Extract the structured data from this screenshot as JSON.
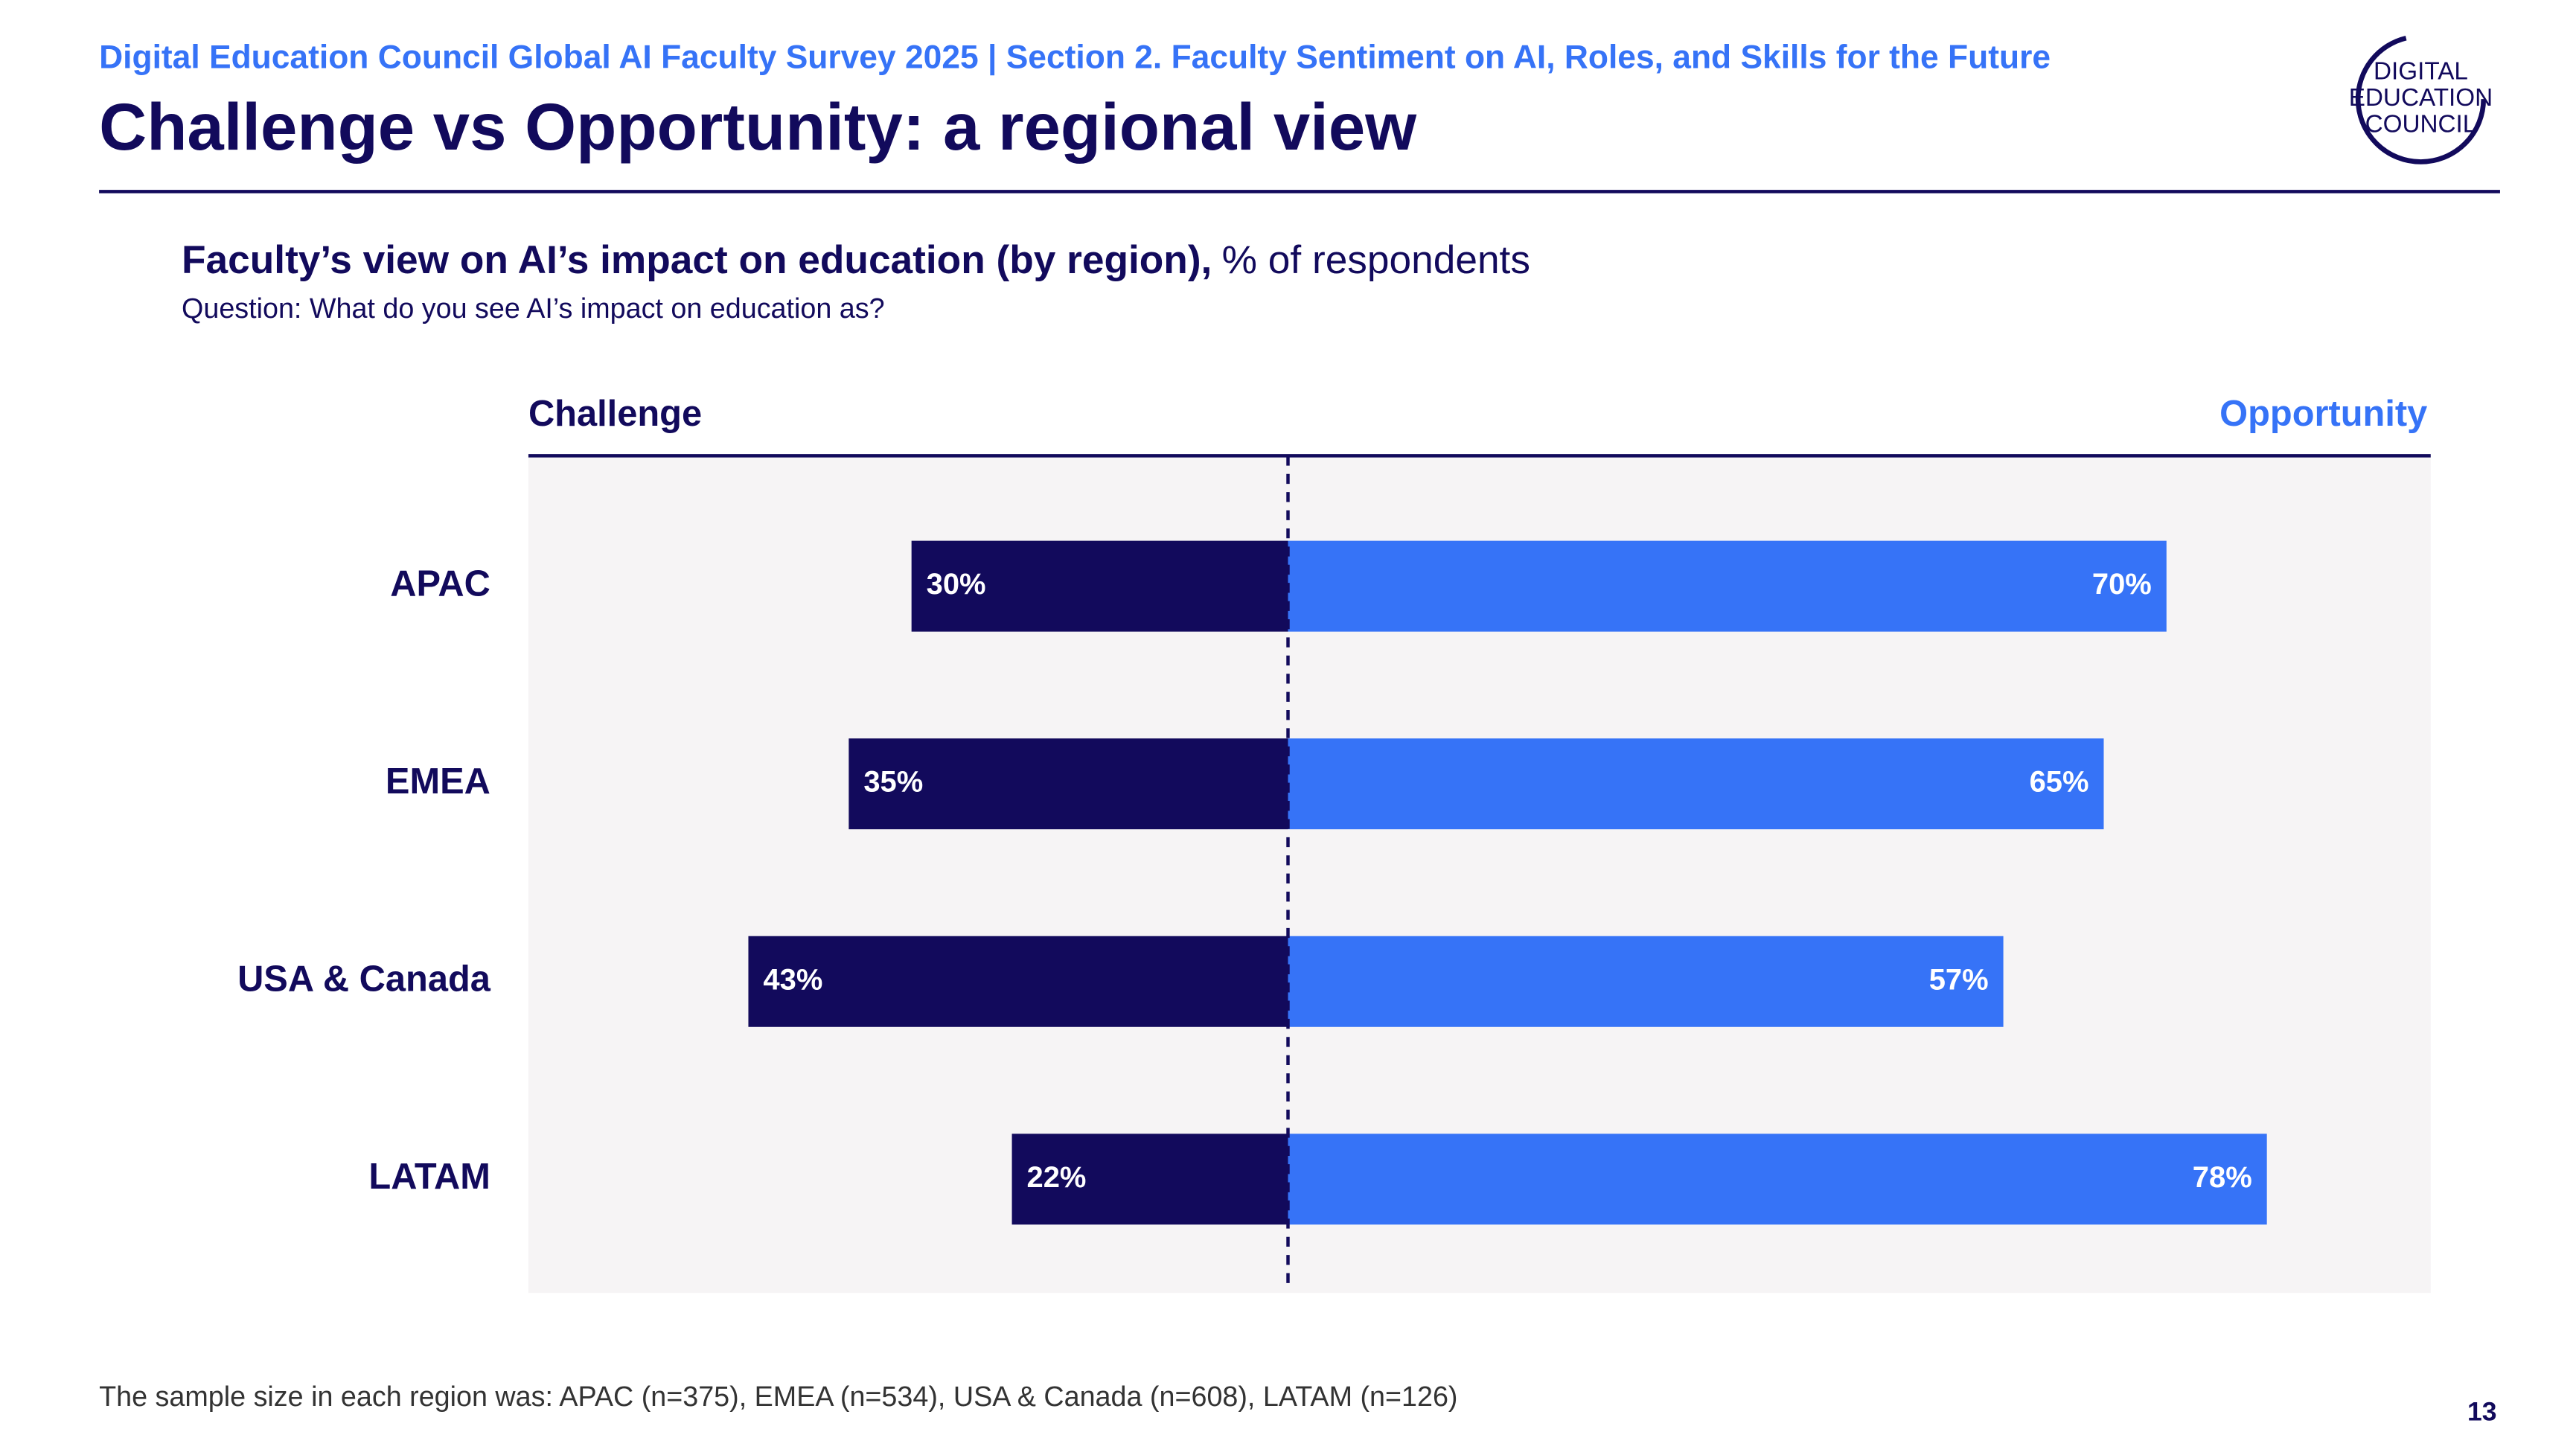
{
  "header": {
    "section": "Digital Education Council Global AI Faculty Survey 2025 | Section 2. Faculty Sentiment on AI, Roles, and Skills for the Future",
    "title": "Challenge vs Opportunity: a regional view",
    "logo": [
      "DIGITAL",
      "EDUCATION",
      "COUNCIL"
    ]
  },
  "chart_data": {
    "type": "diverging_bar",
    "title": "Faculty’s view on AI’s impact on education (by region),",
    "unit": "% of respondents",
    "question": "Question: What do you see AI’s impact on education as?",
    "categories": [
      "APAC",
      "EMEA",
      "USA & Canada",
      "LATAM"
    ],
    "series": [
      {
        "name": "Challenge",
        "color": "#120a5c",
        "values": [
          30,
          35,
          43,
          22
        ],
        "value_labels": [
          "30%",
          "35%",
          "43%",
          "22%"
        ]
      },
      {
        "name": "Opportunity",
        "color": "#3673f7",
        "values": [
          70,
          65,
          57,
          78
        ],
        "value_labels": [
          "70%",
          "65%",
          "57%",
          "78%"
        ]
      }
    ]
  },
  "footer": {
    "note": "The sample size in each region was: APAC (n=375), EMEA  (n=534), USA & Canada  (n=608), LATAM (n=126)",
    "page": "13"
  }
}
